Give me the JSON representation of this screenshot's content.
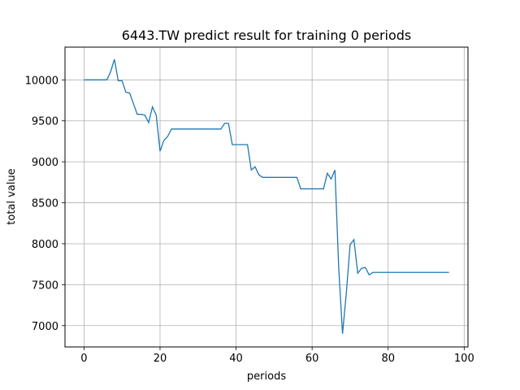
{
  "chart_data": {
    "type": "line",
    "title": "6443.TW predict result for training 0 periods",
    "xlabel": "periods",
    "ylabel": "total value",
    "xlim": [
      -5,
      101
    ],
    "ylim": [
      6740,
      10400
    ],
    "xticks": [
      0,
      20,
      40,
      60,
      80,
      100
    ],
    "yticks": [
      7000,
      7500,
      8000,
      8500,
      9000,
      9500,
      10000
    ],
    "grid": true,
    "colors": {
      "line": "#1f77b4",
      "grid": "#b0b0b0"
    },
    "series": [
      {
        "x": [
          0,
          1,
          2,
          3,
          4,
          5,
          6,
          7,
          8,
          9,
          10,
          11,
          12,
          13,
          14,
          15,
          16,
          17,
          18,
          19,
          20,
          21,
          22,
          23,
          24,
          25,
          26,
          27,
          28,
          29,
          30,
          31,
          32,
          33,
          34,
          35,
          36,
          37,
          38,
          39,
          40,
          41,
          42,
          43,
          44,
          45,
          46,
          47,
          48,
          49,
          50,
          51,
          52,
          53,
          54,
          55,
          56,
          57,
          58,
          59,
          60,
          61,
          62,
          63,
          64,
          65,
          66,
          67,
          68,
          69,
          70,
          71,
          72,
          73,
          74,
          75,
          76,
          77,
          78,
          79,
          80,
          81,
          82,
          83,
          84,
          85,
          86,
          87,
          88,
          89,
          90,
          91,
          92,
          93,
          94,
          95,
          96
        ],
        "values": [
          10000,
          10000,
          10000,
          10000,
          10000,
          10000,
          10000,
          10100,
          10250,
          9990,
          9990,
          9850,
          9840,
          9710,
          9580,
          9580,
          9570,
          9480,
          9670,
          9570,
          9130,
          9260,
          9310,
          9400,
          9400,
          9400,
          9400,
          9400,
          9400,
          9400,
          9400,
          9400,
          9400,
          9400,
          9400,
          9400,
          9400,
          9470,
          9470,
          9210,
          9210,
          9210,
          9210,
          9210,
          8900,
          8940,
          8840,
          8810,
          8810,
          8810,
          8810,
          8810,
          8810,
          8810,
          8810,
          8810,
          8810,
          8670,
          8670,
          8670,
          8670,
          8670,
          8670,
          8670,
          8860,
          8790,
          8900,
          7700,
          6900,
          7400,
          7990,
          8050,
          7640,
          7700,
          7710,
          7620,
          7650,
          7650,
          7650,
          7650,
          7650,
          7650,
          7650,
          7650,
          7650,
          7650,
          7650,
          7650,
          7650,
          7650,
          7650,
          7650,
          7650,
          7650,
          7650,
          7650,
          7650
        ]
      }
    ]
  }
}
